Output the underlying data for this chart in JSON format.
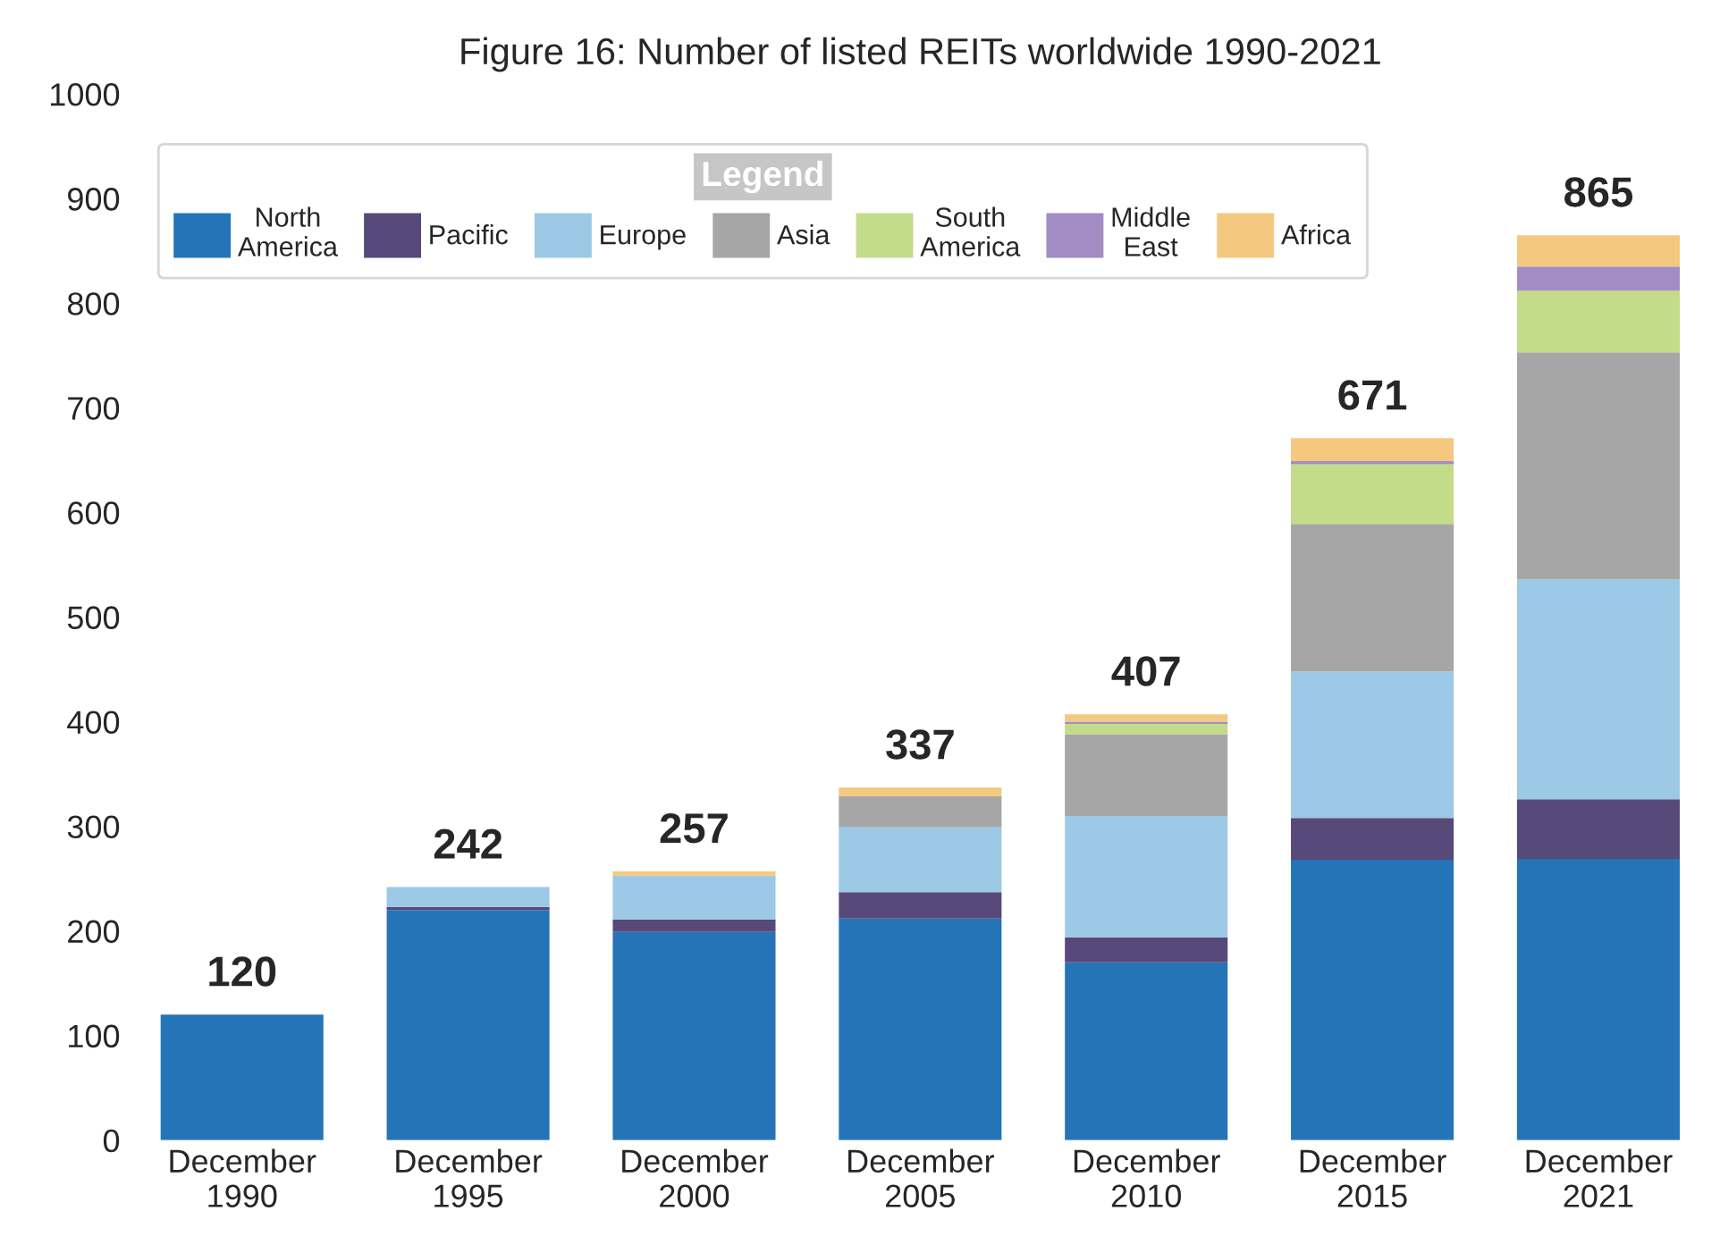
{
  "chart_data": {
    "type": "bar",
    "title": "Figure 16: Number of listed REITs worldwide 1990-2021",
    "categories": [
      "December\n1990",
      "December\n1995",
      "December\n2000",
      "December\n2005",
      "December\n2010",
      "December\n2015",
      "December\n2021"
    ],
    "stacked": true,
    "series": [
      {
        "name": "North\nAmerica",
        "color": "#2574b8",
        "values": [
          120,
          220,
          199,
          212,
          170,
          268,
          269
        ]
      },
      {
        "name": "Pacific",
        "color": "#574a7a",
        "values": [
          0,
          3,
          12,
          25,
          24,
          40,
          57
        ]
      },
      {
        "name": "Europe",
        "color": "#9bc9e6",
        "values": [
          0,
          19,
          42,
          62,
          116,
          140,
          210
        ]
      },
      {
        "name": "Asia",
        "color": "#a6a6a6",
        "values": [
          0,
          0,
          0,
          30,
          78,
          141,
          217
        ]
      },
      {
        "name": "South\nAmerica",
        "color": "#c2dc8a",
        "values": [
          0,
          0,
          0,
          0,
          10,
          57,
          59
        ]
      },
      {
        "name": "Middle\nEast",
        "color": "#a28cc4",
        "values": [
          0,
          0,
          0,
          0,
          2,
          3,
          23
        ]
      },
      {
        "name": "Africa",
        "color": "#f4c97f",
        "values": [
          0,
          0,
          4,
          8,
          7,
          22,
          30
        ]
      }
    ],
    "totals": [
      "120",
      "242",
      "257",
      "337",
      "407",
      "671",
      "865"
    ],
    "legend_title": "Legend",
    "legend": "top left",
    "ylim": [
      0,
      1000
    ],
    "yticks": [
      0,
      100,
      200,
      300,
      400,
      500,
      600,
      700,
      800,
      900,
      1000
    ],
    "grid": false
  }
}
